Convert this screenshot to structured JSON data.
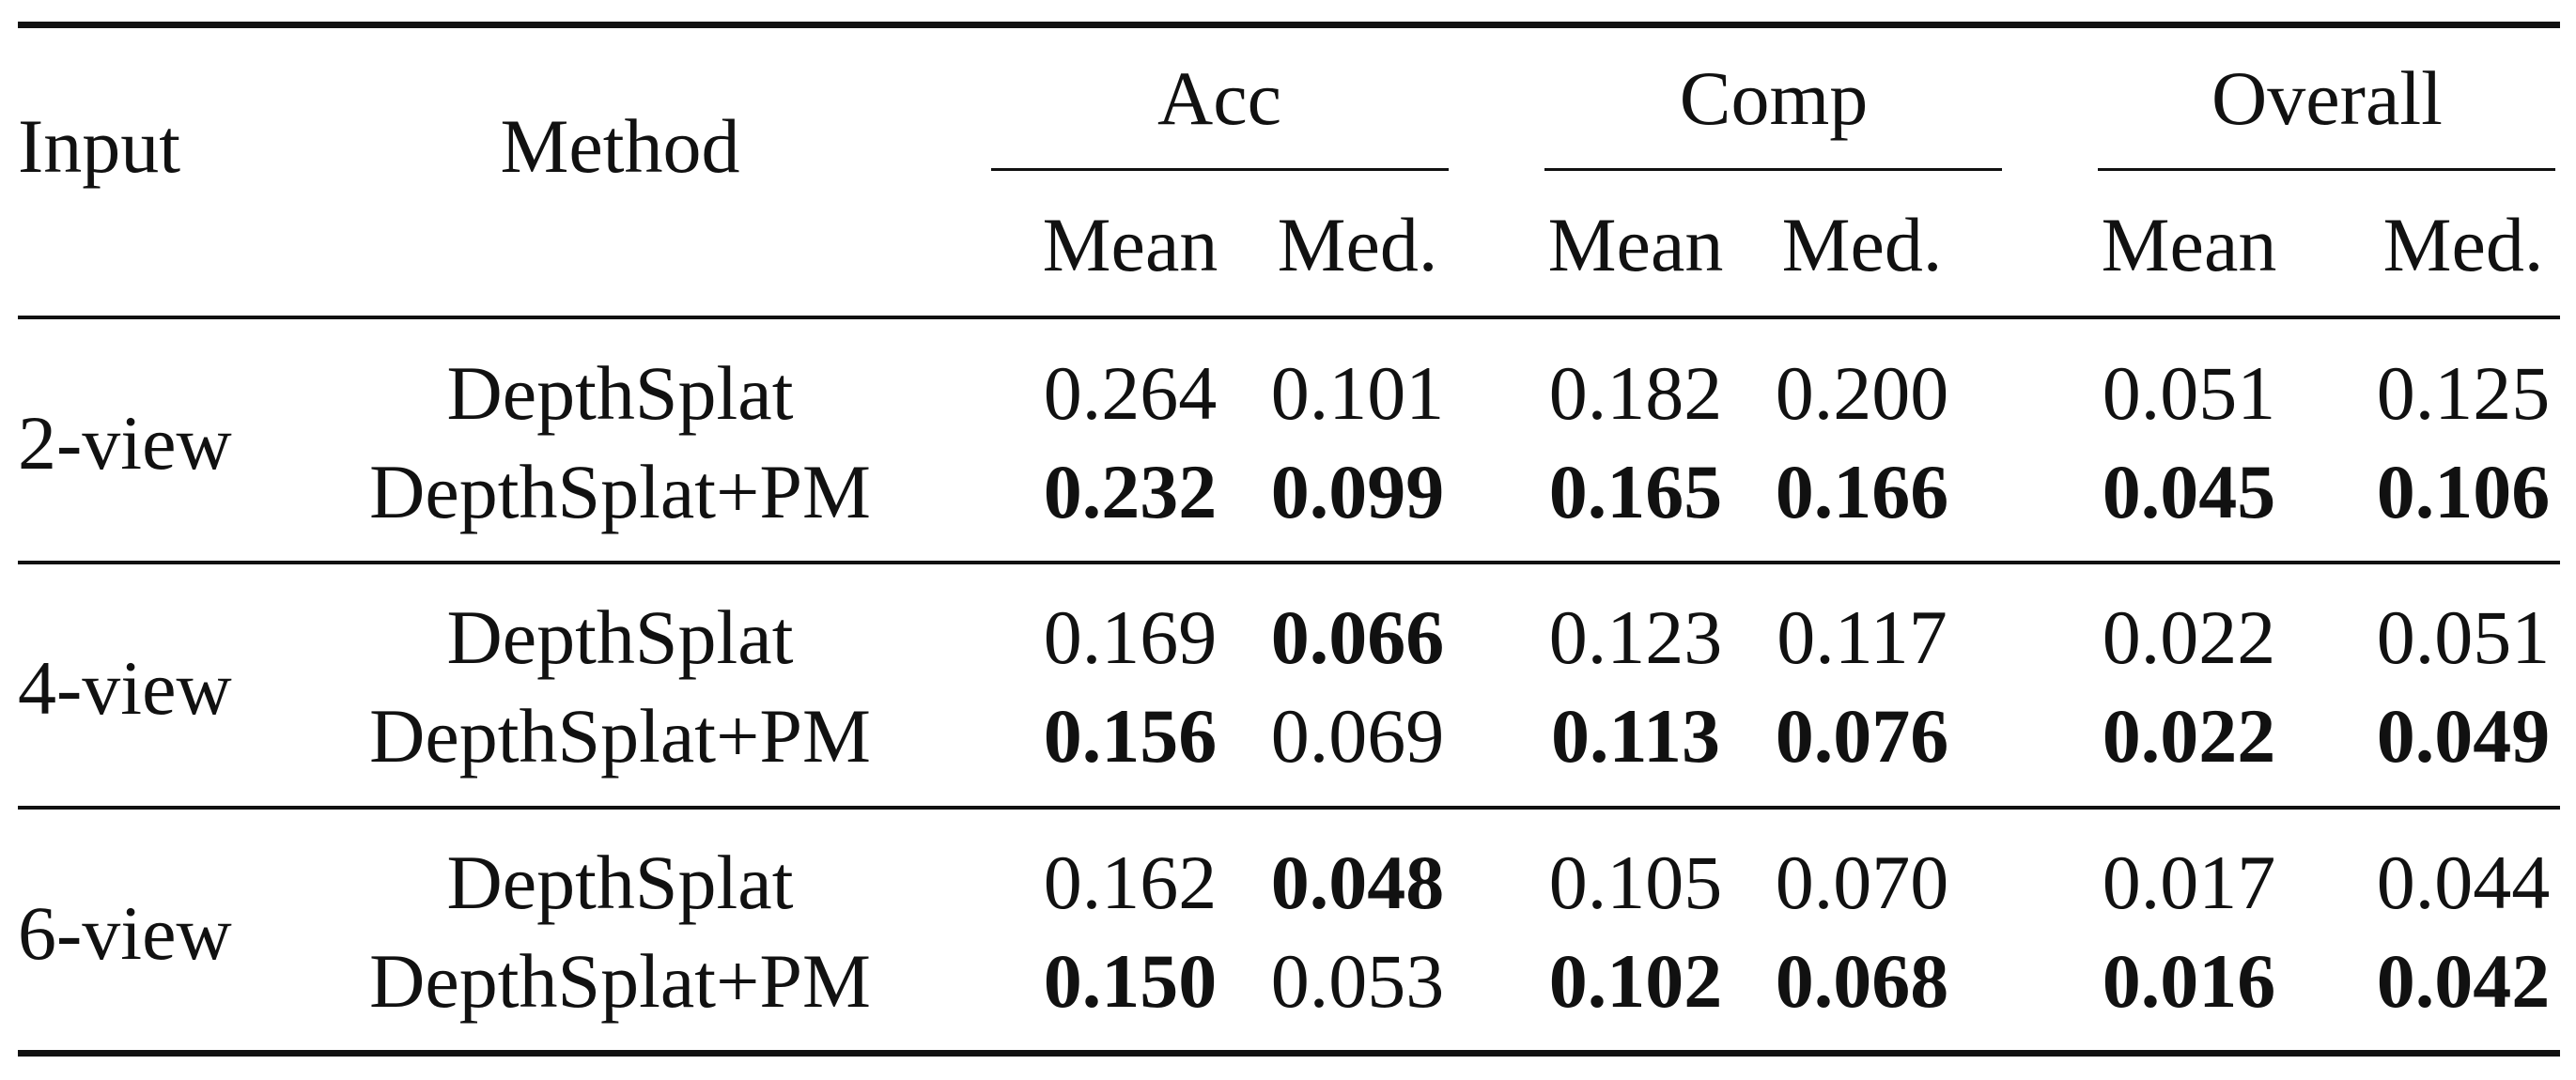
{
  "table": {
    "header": {
      "input": "Input",
      "method": "Method",
      "groups": [
        "Acc",
        "Comp",
        "Overall"
      ],
      "subheaders": [
        "Mean",
        "Med.",
        "Mean",
        "Med.",
        "Mean",
        "Med."
      ]
    },
    "groups": [
      {
        "input": "2-view",
        "rows": [
          {
            "method": "DepthSplat",
            "values": [
              "0.264",
              "0.101",
              "0.182",
              "0.200",
              "0.051",
              "0.125"
            ],
            "bold": [
              false,
              false,
              false,
              false,
              false,
              false
            ]
          },
          {
            "method": "DepthSplat+PM",
            "values": [
              "0.232",
              "0.099",
              "0.165",
              "0.166",
              "0.045",
              "0.106"
            ],
            "bold": [
              true,
              true,
              true,
              true,
              true,
              true
            ]
          }
        ]
      },
      {
        "input": "4-view",
        "rows": [
          {
            "method": "DepthSplat",
            "values": [
              "0.169",
              "0.066",
              "0.123",
              "0.117",
              "0.022",
              "0.051"
            ],
            "bold": [
              false,
              true,
              false,
              false,
              false,
              false
            ]
          },
          {
            "method": "DepthSplat+PM",
            "values": [
              "0.156",
              "0.069",
              "0.113",
              "0.076",
              "0.022",
              "0.049"
            ],
            "bold": [
              true,
              false,
              true,
              true,
              true,
              true
            ]
          }
        ]
      },
      {
        "input": "6-view",
        "rows": [
          {
            "method": "DepthSplat",
            "values": [
              "0.162",
              "0.048",
              "0.105",
              "0.070",
              "0.017",
              "0.044"
            ],
            "bold": [
              false,
              true,
              false,
              false,
              false,
              false
            ]
          },
          {
            "method": "DepthSplat+PM",
            "values": [
              "0.150",
              "0.053",
              "0.102",
              "0.068",
              "0.016",
              "0.042"
            ],
            "bold": [
              true,
              false,
              true,
              true,
              true,
              true
            ]
          }
        ]
      }
    ]
  }
}
